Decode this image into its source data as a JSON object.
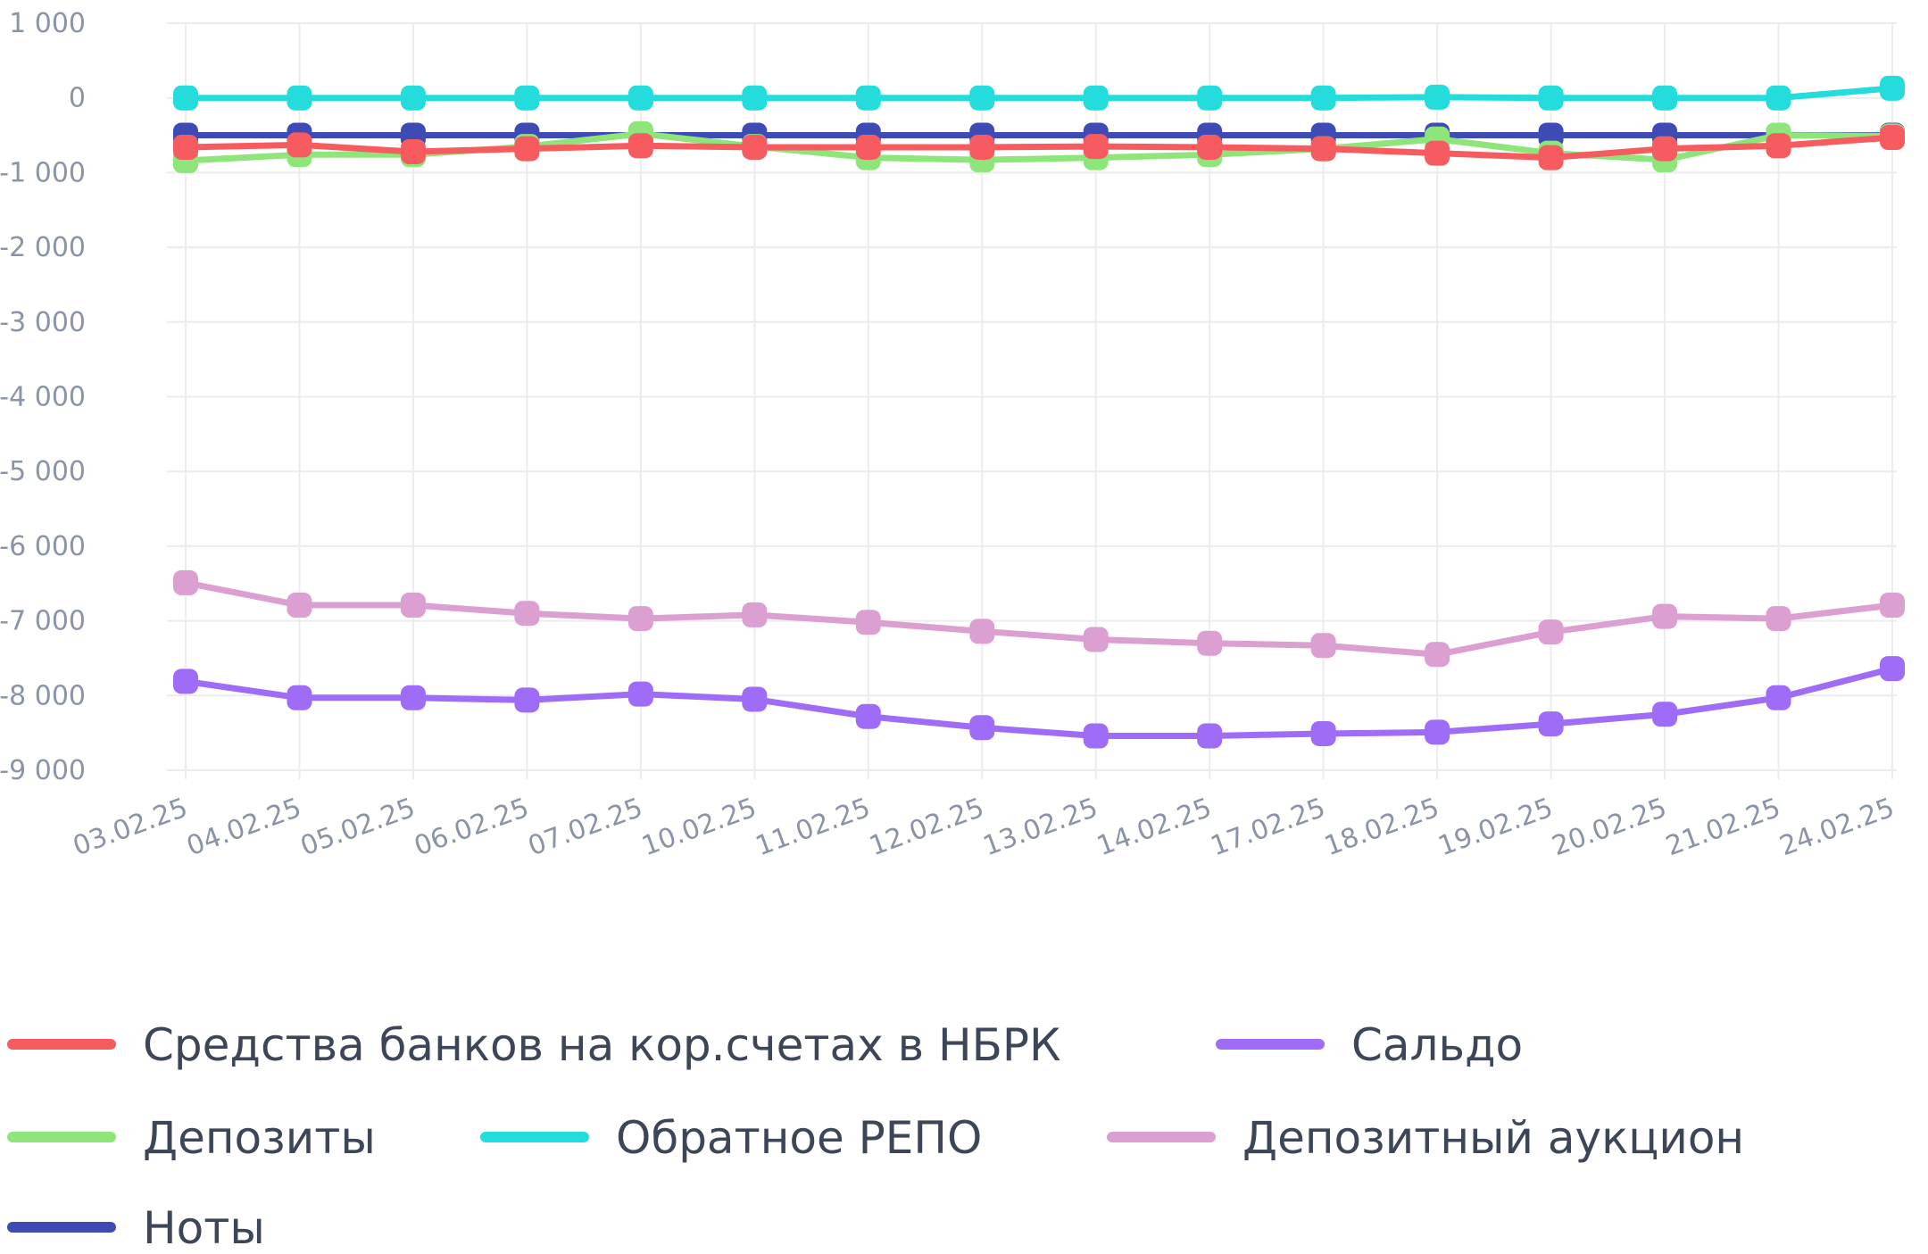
{
  "chart_data": {
    "type": "line",
    "title": "",
    "xlabel": "",
    "ylabel": "",
    "ylim": [
      -9000,
      1000
    ],
    "yticks": [
      1000,
      0,
      -1000,
      -2000,
      -3000,
      -4000,
      -5000,
      -6000,
      -7000,
      -8000,
      -9000
    ],
    "ytick_labels": [
      "1 000",
      "0",
      "-1 000",
      "-2 000",
      "-3 000",
      "-4 000",
      "-5 000",
      "-6 000",
      "-7 000",
      "-8 000",
      "-9 000"
    ],
    "grid": true,
    "legend_placement": "bottom",
    "categories": [
      "03.02.25",
      "04.02.25",
      "05.02.25",
      "06.02.25",
      "07.02.25",
      "10.02.25",
      "11.02.25",
      "12.02.25",
      "13.02.25",
      "14.02.25",
      "17.02.25",
      "18.02.25",
      "19.02.25",
      "20.02.25",
      "21.02.25",
      "24.02.25"
    ],
    "series": [
      {
        "name": "Ноты",
        "color": "#3f4bb5",
        "values": [
          -500,
          -500,
          -500,
          -500,
          -500,
          -500,
          -500,
          -500,
          -500,
          -500,
          -500,
          -500,
          -500,
          -500,
          -500,
          -500
        ]
      },
      {
        "name": "Депозиты",
        "color": "#8ee57a",
        "values": [
          -840,
          -760,
          -760,
          -650,
          -480,
          -650,
          -800,
          -830,
          -800,
          -760,
          -680,
          -550,
          -740,
          -830,
          -500,
          -510
        ]
      },
      {
        "name": "Средства банков на кор.счетах в НБРК",
        "color": "#f65c5f",
        "values": [
          -660,
          -630,
          -720,
          -680,
          -640,
          -660,
          -660,
          -660,
          -650,
          -660,
          -680,
          -740,
          -800,
          -680,
          -640,
          -530
        ]
      },
      {
        "name": "Обратное РЕПО",
        "color": "#24dcdc",
        "values": [
          0,
          0,
          0,
          0,
          0,
          0,
          0,
          0,
          0,
          0,
          0,
          10,
          0,
          0,
          0,
          130
        ]
      },
      {
        "name": "Депозитный аукцион",
        "color": "#dc9fd2",
        "values": [
          -6490,
          -6790,
          -6790,
          -6900,
          -6970,
          -6920,
          -7020,
          -7140,
          -7250,
          -7300,
          -7330,
          -7450,
          -7150,
          -6940,
          -6970,
          -6790
        ]
      },
      {
        "name": "Сальдо",
        "color": "#9f6cf7",
        "values": [
          -7810,
          -8030,
          -8030,
          -8060,
          -7980,
          -8050,
          -8280,
          -8430,
          -8540,
          -8540,
          -8510,
          -8490,
          -8380,
          -8250,
          -8030,
          -7640
        ]
      }
    ]
  },
  "legend": {
    "rows": [
      [
        {
          "label": "Средства банков на кор.счетах в НБРК",
          "color": "#f65c5f"
        },
        {
          "label": "Сальдо",
          "color": "#9f6cf7"
        }
      ],
      [
        {
          "label": "Депозиты",
          "color": "#8ee57a"
        },
        {
          "label": "Обратное РЕПО",
          "color": "#24dcdc"
        },
        {
          "label": "Депозитный аукцион",
          "color": "#dc9fd2"
        }
      ],
      [
        {
          "label": "Ноты",
          "color": "#3f4bb5"
        }
      ]
    ]
  }
}
